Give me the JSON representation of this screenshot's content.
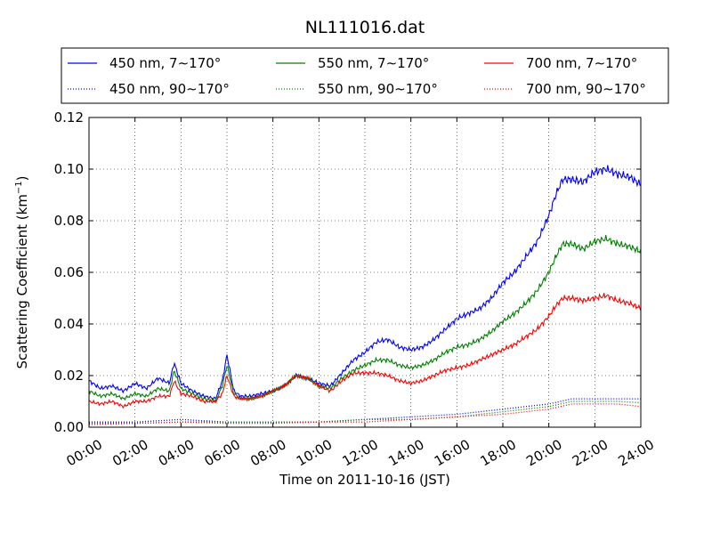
{
  "chart_data": {
    "type": "line",
    "title": "NL111016.dat",
    "xlabel": "Time on 2011-10-16 (JST)",
    "ylabel_main": "Scattering Coefficient (km",
    "ylabel_sup": "−1",
    "ylabel_tail": ")",
    "xlim_hours": [
      0,
      24
    ],
    "ylim": [
      0,
      0.12
    ],
    "x_ticks": [
      "00:00",
      "02:00",
      "04:00",
      "06:00",
      "08:00",
      "10:00",
      "12:00",
      "14:00",
      "16:00",
      "18:00",
      "20:00",
      "22:00",
      "24:00"
    ],
    "y_ticks": [
      "0.00",
      "0.02",
      "0.04",
      "0.06",
      "0.08",
      "0.10",
      "0.12"
    ],
    "grid": true,
    "legend_position": "top, above plot",
    "series": [
      {
        "name": "450 nm, 7∼170°",
        "color": "#0000ff",
        "style": "solid",
        "x": [
          0,
          0.5,
          1,
          1.5,
          2,
          2.5,
          3,
          3.5,
          3.7,
          4,
          4.5,
          5,
          5.5,
          5.8,
          6,
          6.3,
          6.6,
          7,
          7.5,
          8,
          8.5,
          9,
          9.5,
          10,
          10.5,
          11,
          11.5,
          12,
          12.5,
          13,
          13.5,
          14,
          14.5,
          15,
          15.5,
          16,
          16.5,
          17,
          17.5,
          18,
          18.5,
          19,
          19.5,
          20,
          20.3,
          20.6,
          21,
          21.5,
          22,
          22.5,
          23,
          23.5,
          24
        ],
        "y": [
          0.018,
          0.015,
          0.016,
          0.014,
          0.017,
          0.015,
          0.019,
          0.017,
          0.025,
          0.017,
          0.014,
          0.012,
          0.011,
          0.018,
          0.028,
          0.014,
          0.012,
          0.012,
          0.013,
          0.014,
          0.016,
          0.02,
          0.019,
          0.017,
          0.016,
          0.021,
          0.026,
          0.029,
          0.033,
          0.034,
          0.031,
          0.03,
          0.031,
          0.034,
          0.038,
          0.042,
          0.044,
          0.046,
          0.05,
          0.056,
          0.06,
          0.066,
          0.072,
          0.082,
          0.09,
          0.096,
          0.096,
          0.095,
          0.099,
          0.1,
          0.098,
          0.097,
          0.094
        ]
      },
      {
        "name": "550 nm, 7∼170°",
        "color": "#008000",
        "style": "solid",
        "x": [
          0,
          0.5,
          1,
          1.5,
          2,
          2.5,
          3,
          3.5,
          3.7,
          4,
          4.5,
          5,
          5.5,
          5.8,
          6,
          6.3,
          6.6,
          7,
          7.5,
          8,
          8.5,
          9,
          9.5,
          10,
          10.5,
          11,
          11.5,
          12,
          12.5,
          13,
          13.5,
          14,
          14.5,
          15,
          15.5,
          16,
          16.5,
          17,
          17.5,
          18,
          18.5,
          19,
          19.5,
          20,
          20.3,
          20.6,
          21,
          21.5,
          22,
          22.5,
          23,
          23.5,
          24
        ],
        "y": [
          0.014,
          0.012,
          0.013,
          0.011,
          0.013,
          0.012,
          0.015,
          0.014,
          0.022,
          0.015,
          0.013,
          0.011,
          0.01,
          0.016,
          0.024,
          0.013,
          0.011,
          0.011,
          0.012,
          0.014,
          0.016,
          0.02,
          0.019,
          0.016,
          0.015,
          0.019,
          0.022,
          0.024,
          0.026,
          0.026,
          0.024,
          0.023,
          0.024,
          0.026,
          0.029,
          0.031,
          0.032,
          0.034,
          0.037,
          0.041,
          0.044,
          0.048,
          0.053,
          0.06,
          0.066,
          0.071,
          0.071,
          0.069,
          0.072,
          0.073,
          0.071,
          0.07,
          0.068
        ]
      },
      {
        "name": "700 nm, 7∼170°",
        "color": "#ff0000",
        "style": "solid",
        "x": [
          0,
          0.5,
          1,
          1.5,
          2,
          2.5,
          3,
          3.5,
          3.7,
          4,
          4.5,
          5,
          5.5,
          5.8,
          6,
          6.3,
          6.6,
          7,
          7.5,
          8,
          8.5,
          9,
          9.5,
          10,
          10.5,
          11,
          11.5,
          12,
          12.5,
          13,
          13.5,
          14,
          14.5,
          15,
          15.5,
          16,
          16.5,
          17,
          17.5,
          18,
          18.5,
          19,
          19.5,
          20,
          20.3,
          20.6,
          21,
          21.5,
          22,
          22.5,
          23,
          23.5,
          24
        ],
        "y": [
          0.01,
          0.009,
          0.01,
          0.008,
          0.01,
          0.01,
          0.012,
          0.012,
          0.018,
          0.013,
          0.012,
          0.01,
          0.01,
          0.013,
          0.02,
          0.012,
          0.011,
          0.011,
          0.012,
          0.014,
          0.016,
          0.02,
          0.019,
          0.016,
          0.014,
          0.018,
          0.021,
          0.021,
          0.021,
          0.02,
          0.018,
          0.017,
          0.018,
          0.02,
          0.022,
          0.023,
          0.024,
          0.026,
          0.028,
          0.03,
          0.032,
          0.035,
          0.038,
          0.043,
          0.047,
          0.05,
          0.05,
          0.049,
          0.05,
          0.051,
          0.049,
          0.048,
          0.046
        ]
      },
      {
        "name": "450 nm, 90∼170°",
        "color": "#0000ff",
        "style": "dotted",
        "x": [
          0,
          2,
          4,
          6,
          8,
          10,
          12,
          14,
          16,
          18,
          20,
          21,
          22,
          23,
          24
        ],
        "y": [
          0.002,
          0.002,
          0.003,
          0.002,
          0.002,
          0.002,
          0.003,
          0.004,
          0.005,
          0.007,
          0.009,
          0.011,
          0.011,
          0.011,
          0.011
        ]
      },
      {
        "name": "550 nm, 90∼170°",
        "color": "#008000",
        "style": "dotted",
        "x": [
          0,
          2,
          4,
          6,
          8,
          10,
          12,
          14,
          16,
          18,
          20,
          21,
          22,
          23,
          24
        ],
        "y": [
          0.0015,
          0.0015,
          0.002,
          0.002,
          0.002,
          0.002,
          0.003,
          0.003,
          0.004,
          0.006,
          0.008,
          0.01,
          0.01,
          0.01,
          0.0095
        ]
      },
      {
        "name": "700 nm, 90∼170°",
        "color": "#ff0000",
        "style": "dotted",
        "x": [
          0,
          2,
          4,
          6,
          8,
          10,
          12,
          14,
          16,
          18,
          20,
          21,
          22,
          23,
          24
        ],
        "y": [
          0.001,
          0.0015,
          0.002,
          0.0015,
          0.0015,
          0.002,
          0.002,
          0.003,
          0.004,
          0.005,
          0.007,
          0.009,
          0.009,
          0.009,
          0.008
        ]
      }
    ]
  }
}
